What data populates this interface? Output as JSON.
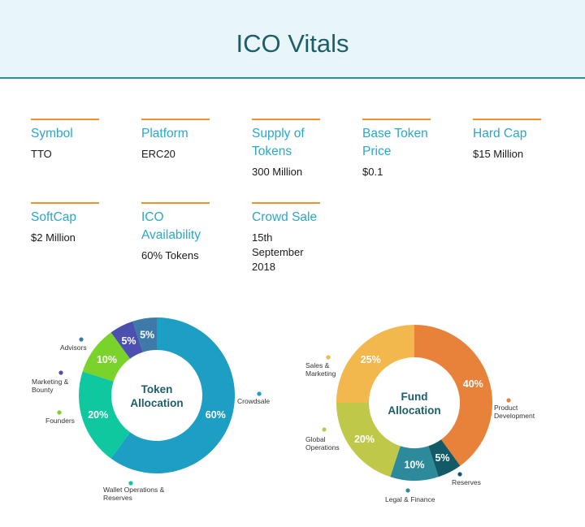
{
  "title": "ICO Vitals",
  "vitals": [
    {
      "label_lines": [
        "Symbol"
      ],
      "value_lines": [
        "TTO"
      ]
    },
    {
      "label_lines": [
        "Platform"
      ],
      "value_lines": [
        "ERC20"
      ]
    },
    {
      "label_lines": [
        "Supply of",
        "Tokens"
      ],
      "value_lines": [
        "300 Million"
      ]
    },
    {
      "label_lines": [
        "Base Token",
        "Price"
      ],
      "value_lines": [
        "$0.1"
      ]
    },
    {
      "label_lines": [
        "Hard Cap"
      ],
      "value_lines": [
        "$15 Million"
      ]
    },
    {
      "label_lines": [
        "SoftCap"
      ],
      "value_lines": [
        "$2 Million"
      ]
    },
    {
      "label_lines": [
        "ICO",
        "Availability"
      ],
      "value_lines": [
        "60% Tokens"
      ]
    },
    {
      "label_lines": [
        "Crowd Sale"
      ],
      "value_lines": [
        "15th",
        "September",
        "2018"
      ]
    }
  ],
  "colors": {
    "accent_rule": "#f0922b",
    "label": "#2aa8c8",
    "title": "#1d5e6b",
    "header_bg": "#e8f6f9"
  },
  "chart_data": [
    {
      "type": "pie",
      "style": "donut",
      "center_title_lines": [
        "Token",
        "Allocation"
      ],
      "slices": [
        {
          "name": "Crowdsale",
          "value": 60,
          "label": "60%",
          "color": "#1d9ec3"
        },
        {
          "name": "Wallet Operations & Reserves",
          "name_lines": [
            "Wallet Operations &",
            "Reserves"
          ],
          "value": 20,
          "label": "20%",
          "color": "#10c8a0"
        },
        {
          "name": "Founders",
          "name_lines": [
            "Founders"
          ],
          "value": 10,
          "label": "10%",
          "color": "#7ad32a"
        },
        {
          "name": "Marketing & Bounty",
          "name_lines": [
            "Marketing &",
            "Bounty"
          ],
          "value": 5,
          "label": "5%",
          "color": "#4b4fb0"
        },
        {
          "name": "Advisors",
          "name_lines": [
            "Advisors"
          ],
          "value": 5,
          "label": "5%",
          "color": "#3e7aa8"
        }
      ]
    },
    {
      "type": "pie",
      "style": "donut",
      "center_title_lines": [
        "Fund",
        "Allocation"
      ],
      "slices": [
        {
          "name": "Product Development",
          "name_lines": [
            "Product",
            "Development"
          ],
          "value": 40,
          "label": "40%",
          "color": "#e8823a"
        },
        {
          "name": "Reserves",
          "name_lines": [
            "Reserves"
          ],
          "value": 5,
          "label": "5%",
          "color": "#125b66"
        },
        {
          "name": "Legal & Finance",
          "name_lines": [
            "Legal & Finance"
          ],
          "value": 10,
          "label": "10%",
          "color": "#2d8a9a"
        },
        {
          "name": "Global Operations",
          "name_lines": [
            "Global",
            "Operations"
          ],
          "value": 20,
          "label": "20%",
          "color": "#c0c84a"
        },
        {
          "name": "Sales & Marketing",
          "name_lines": [
            "Sales &",
            "Marketing"
          ],
          "value": 25,
          "label": "25%",
          "color": "#f2b84e"
        }
      ]
    }
  ]
}
